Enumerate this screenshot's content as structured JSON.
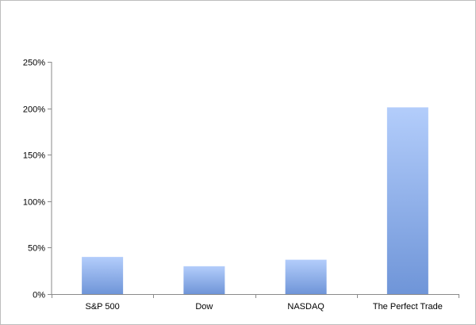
{
  "chart_data": {
    "type": "bar",
    "categories": [
      "S&P 500",
      "Dow",
      "NASDAQ",
      "The Perfect Trade"
    ],
    "values": [
      40,
      30,
      37,
      201
    ],
    "value_format": "percent",
    "ylim": [
      0,
      250
    ],
    "yticks": [
      0,
      50,
      100,
      150,
      200,
      250
    ],
    "ytick_labels": [
      "0%",
      "50%",
      "100%",
      "150%",
      "200%",
      "250%"
    ],
    "title": "",
    "xlabel": "",
    "ylabel": "",
    "grid": false,
    "legend": "none",
    "bar_color_top": "#b3cdfb",
    "bar_color_bottom": "#6f95d8"
  }
}
